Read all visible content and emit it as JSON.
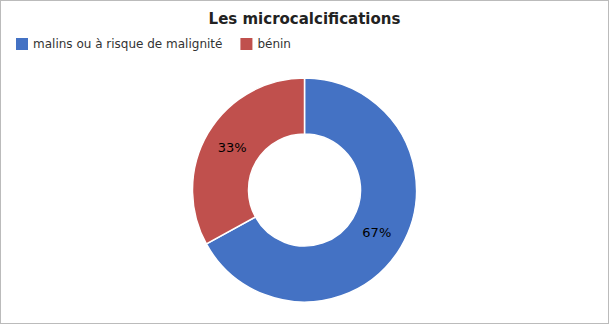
{
  "chart_data": {
    "type": "donut",
    "title": "Les microcalcifications",
    "categories": [
      "malins ou à risque de malignité",
      "bénin"
    ],
    "values": [
      67,
      33
    ],
    "value_labels": [
      "67%",
      "33%"
    ],
    "colors": [
      "#4472C4",
      "#C0504D"
    ],
    "data_labels": true,
    "legend": "upper-left"
  }
}
